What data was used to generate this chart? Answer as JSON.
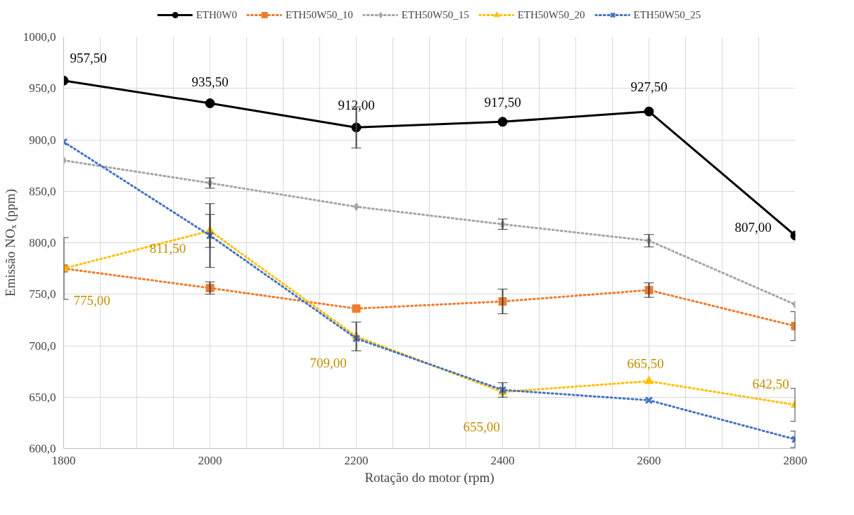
{
  "chart_data": {
    "type": "line",
    "xlabel": "Rotação do motor (rpm)",
    "ylabel": "Emissão NOₓ (ppm)",
    "x": [
      1800,
      2000,
      2200,
      2400,
      2600,
      2800
    ],
    "xlim": [
      1800,
      2800
    ],
    "xticks": [
      1800,
      {
        "value": 1850,
        "label": null
      },
      {
        "value": 1900,
        "label": null
      },
      {
        "value": 1950,
        "label": null
      },
      2000,
      {
        "value": 2050,
        "label": null
      },
      {
        "value": 2100,
        "label": null
      },
      {
        "value": 2150,
        "label": null
      },
      2200,
      {
        "value": 2250,
        "label": null
      },
      {
        "value": 2300,
        "label": null
      },
      {
        "value": 2350,
        "label": null
      },
      2400,
      {
        "value": 2450,
        "label": null
      },
      {
        "value": 2500,
        "label": null
      },
      {
        "value": 2550,
        "label": null
      },
      2600,
      {
        "value": 2650,
        "label": null
      },
      {
        "value": 2700,
        "label": null
      },
      {
        "value": 2750,
        "label": null
      },
      2800
    ],
    "ylim": [
      600,
      1000
    ],
    "yticks": [
      {
        "value": 600,
        "label": "600,0"
      },
      {
        "value": 650,
        "label": "650,0"
      },
      {
        "value": 700,
        "label": "700,0"
      },
      {
        "value": 750,
        "label": "750,0"
      },
      {
        "value": 800,
        "label": "800,0"
      },
      {
        "value": 850,
        "label": "850,0"
      },
      {
        "value": 900,
        "label": "900,0"
      },
      {
        "value": 950,
        "label": "950,0"
      },
      {
        "value": 1000,
        "label": "1000,0"
      }
    ],
    "grid": true,
    "legend": "top",
    "series": [
      {
        "name": "ETH0W0",
        "color": "#000000",
        "marker": "circle",
        "line_style": "solid",
        "values": [
          957.5,
          935.5,
          912,
          917.5,
          927.5,
          807
        ],
        "errors": [
          null,
          null,
          20,
          null,
          null,
          null
        ],
        "value_labels": [
          "957,50",
          "935,50",
          "912,00",
          "917,50",
          "927,50",
          "807,00"
        ]
      },
      {
        "name": "ETH50W50_10",
        "color": "#ed7d31",
        "marker": "square",
        "line_style": "dotted",
        "values": [
          775,
          756,
          736,
          743,
          754,
          719
        ],
        "errors": [
          30,
          6,
          null,
          12,
          7,
          14
        ]
      },
      {
        "name": "ETH50W50_15",
        "color": "#a5a5a5",
        "marker": "diamond",
        "line_style": "dotted",
        "values": [
          880,
          858,
          835,
          818,
          802,
          740
        ],
        "errors": [
          null,
          5,
          null,
          5,
          6,
          null
        ]
      },
      {
        "name": "ETH50W50_20",
        "color": "#ffc000",
        "marker": "triangle",
        "line_style": "dotted",
        "values": [
          775,
          811.5,
          709,
          655,
          665.5,
          642.5
        ],
        "errors": [
          null,
          16,
          14,
          null,
          null,
          16
        ],
        "value_labels": [
          "775,00",
          "811,50",
          "709,00",
          "655,00",
          "665,50",
          "642,50"
        ]
      },
      {
        "name": "ETH50W50_25",
        "color": "#4472c4",
        "marker": "cross",
        "line_style": "dotted",
        "values": [
          898,
          807,
          707,
          657,
          647,
          609
        ],
        "errors": [
          null,
          31,
          null,
          7,
          null,
          8
        ]
      }
    ]
  }
}
